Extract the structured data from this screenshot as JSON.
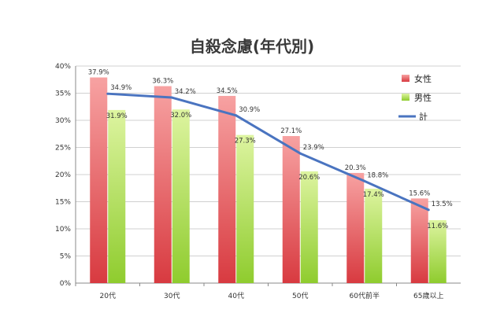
{
  "chart_data": {
    "type": "bar",
    "title": "自殺念慮(年代別)",
    "categories": [
      "20代",
      "30代",
      "40代",
      "50代",
      "60代前半",
      "65歳以上"
    ],
    "ylim": [
      0,
      40
    ],
    "yticks": [
      "0%",
      "5%",
      "10%",
      "15%",
      "20%",
      "25%",
      "30%",
      "35%",
      "40%"
    ],
    "grid": true,
    "legend_position": "top-right",
    "series": [
      {
        "name": "女性",
        "type": "bar",
        "color": "#e0494f",
        "values": [
          37.9,
          36.3,
          34.5,
          27.1,
          20.3,
          15.6
        ],
        "labels": [
          "37.9%",
          "36.3%",
          "34.5%",
          "27.1%",
          "20.3%",
          "15.6%"
        ]
      },
      {
        "name": "男性",
        "type": "bar",
        "color": "#9ed23c",
        "values": [
          31.9,
          32.0,
          27.3,
          20.6,
          17.4,
          11.6
        ],
        "labels": [
          "31.9%",
          "32.0%",
          "27.3%",
          "20.6%",
          "17.4%",
          "11.6%"
        ]
      },
      {
        "name": "計",
        "type": "line",
        "color": "#4a74c0",
        "values": [
          34.9,
          34.2,
          30.9,
          23.9,
          18.8,
          13.5
        ],
        "labels": [
          "34.9%",
          "34.2%",
          "30.9%",
          "23.9%",
          "18.8%",
          "13.5%"
        ]
      }
    ]
  }
}
